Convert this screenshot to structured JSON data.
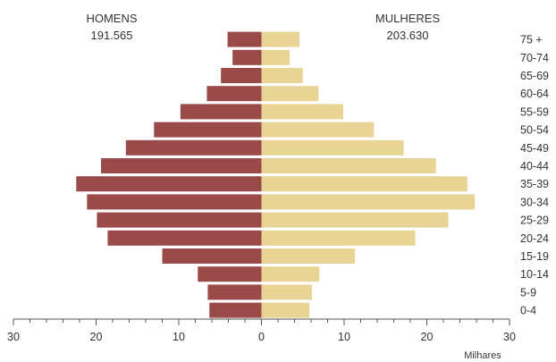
{
  "chart_data": {
    "type": "bar",
    "orientation": "horizontal-pyramid",
    "categories": [
      "0-4",
      "5-9",
      "10-14",
      "15-19",
      "20-24",
      "25-29",
      "30-34",
      "35-39",
      "40-44",
      "45-49",
      "50-54",
      "55-59",
      "60-64",
      "65-69",
      "70-74",
      "75 +"
    ],
    "series": [
      {
        "name": "HOMENS",
        "total": "191.565",
        "color": "#9b4a4a",
        "side": "left",
        "values": [
          6.3,
          6.5,
          7.7,
          12.0,
          18.6,
          19.9,
          21.1,
          22.4,
          19.4,
          16.4,
          13.0,
          9.8,
          6.6,
          4.9,
          3.5,
          4.1
        ]
      },
      {
        "name": "MULHERES",
        "total": "203.630",
        "color": "#e8d595",
        "side": "right",
        "values": [
          5.8,
          6.1,
          7.0,
          11.3,
          18.6,
          22.6,
          25.8,
          24.9,
          21.1,
          17.2,
          13.6,
          9.9,
          6.9,
          5.0,
          3.4,
          4.6
        ]
      }
    ],
    "xticks": [
      "30",
      "20",
      "10",
      "0",
      "10",
      "20",
      "30"
    ],
    "xlim": [
      -30,
      30
    ],
    "xlabel": "Milhares",
    "ylabel": "",
    "title": "",
    "grid": false,
    "category_labels_side": "right"
  }
}
